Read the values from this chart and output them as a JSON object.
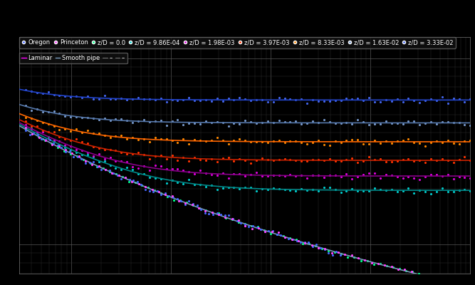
{
  "Re_min": 3000,
  "Re_max": 100000000.0,
  "f_min": 0.007,
  "f_max": 0.13,
  "background_color": "#000000",
  "grid_color": "#555555",
  "text_color": "#ffffff",
  "roughness_values": [
    0.0,
    0.000986,
    0.00198,
    0.00397,
    0.00833,
    0.0163,
    0.0333
  ],
  "line_colors": [
    "#00cc66",
    "#008888",
    "#880088",
    "#cc2200",
    "#ff6600",
    "#5577aa",
    "#2244cc"
  ],
  "scatter_colors": [
    "#00ff88",
    "#00cccc",
    "#dd00dd",
    "#ff3300",
    "#ff8800",
    "#7799cc",
    "#4466ee"
  ],
  "roughness_labels": [
    "z/D = 0.0",
    "z/D = 9.86E-04",
    "z/D = 1.98E-03",
    "z/D = 3.97E-03",
    "z/D = 8.33E-03",
    "z/D = 1.63E-02",
    "z/D = 3.33E-02"
  ],
  "laminar_color": "#ff00ff",
  "smooth_color": "#7799bb",
  "oregon_color": "#4466ff",
  "princeton_color": "#ff44ff",
  "legend_fontsize": 6.0,
  "tick_fontsize": 6.5
}
